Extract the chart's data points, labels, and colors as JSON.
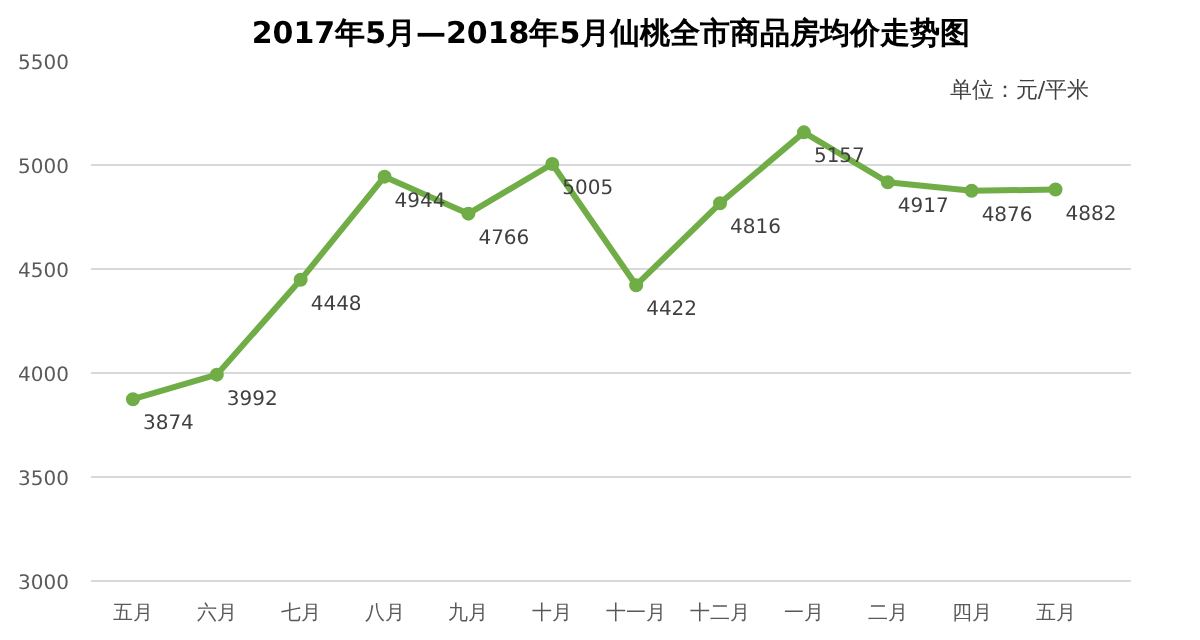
{
  "chart_data": {
    "type": "line",
    "title": "2017年5月—2018年5月仙桃全市商品房均价走势图",
    "categories": [
      "五月",
      "六月",
      "七月",
      "八月",
      "九月",
      "十月",
      "十一月",
      "十二月",
      "一月",
      "二月",
      "四月",
      "五月"
    ],
    "series": [
      {
        "color": "#70ad47",
        "values": [
          3874,
          3992,
          4448,
          4944,
          4766,
          5005,
          4422,
          4816,
          5157,
          4917,
          4876,
          4882
        ]
      }
    ],
    "ylim": [
      3000,
      5500
    ],
    "yticks": [
      3000,
      3500,
      4000,
      4500,
      5000,
      5500
    ],
    "grid": "y",
    "data_labels": true,
    "marker": "circle",
    "line_style": "solid",
    "annotations": [
      "单位：元/平米"
    ]
  }
}
